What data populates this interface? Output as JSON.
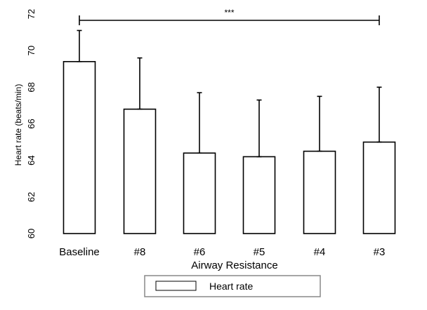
{
  "chart_data": {
    "type": "bar",
    "categories": [
      "Baseline",
      "#8",
      "#6",
      "#5",
      "#4",
      "#3"
    ],
    "series": [
      {
        "name": "Heart rate",
        "values": [
          69.4,
          66.8,
          64.4,
          64.2,
          64.5,
          65.0
        ],
        "error_upper": [
          1.7,
          2.8,
          3.3,
          3.1,
          3.0,
          3.0
        ]
      }
    ],
    "xlabel": "Airway Resistance",
    "ylabel": "Heart rate (beats/min)",
    "ylim": [
      60,
      72
    ],
    "yticks": [
      60,
      62,
      64,
      66,
      68,
      70,
      72
    ],
    "grid": false,
    "legend_position": "bottom",
    "significance": {
      "label": "***",
      "from": "Baseline",
      "to": "#3"
    },
    "colors": {
      "bar_fill": "#ffffff",
      "bar_stroke": "#000000",
      "legend_border": "#888888"
    }
  }
}
